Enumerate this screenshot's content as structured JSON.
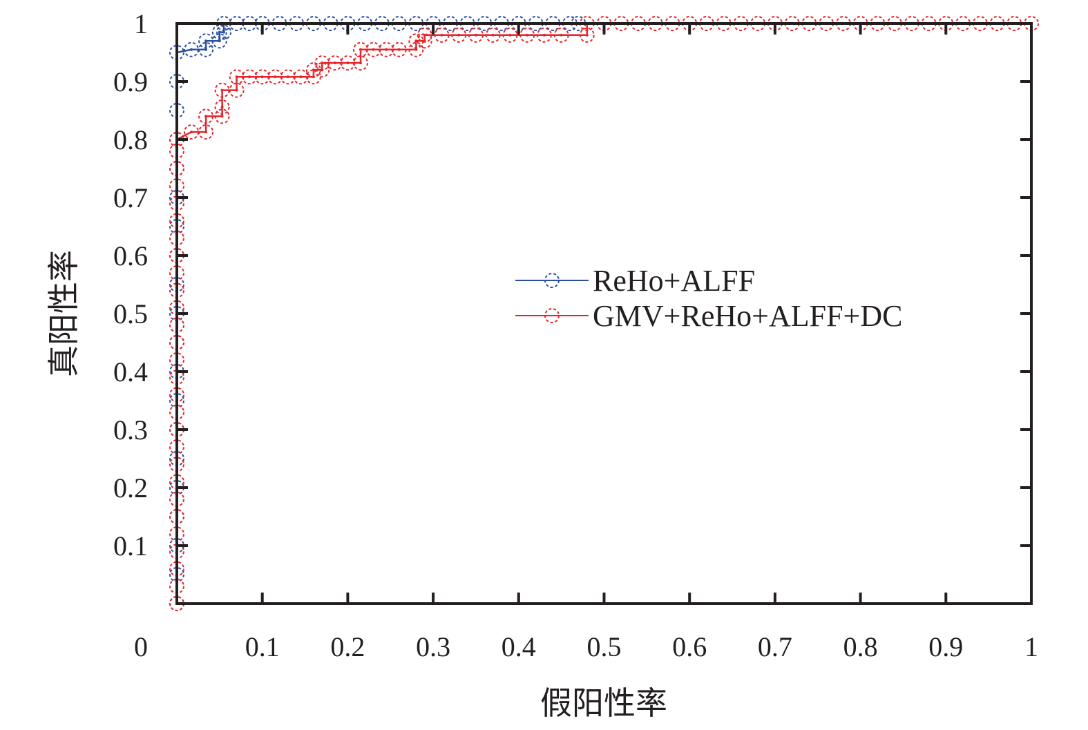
{
  "chart_data": {
    "type": "line",
    "title": "",
    "xlabel": "假阳性率",
    "ylabel": "真阳性率",
    "xlim": [
      0,
      1
    ],
    "ylim": [
      0,
      1
    ],
    "x_ticks": [
      "0",
      "0.1",
      "0.2",
      "0.3",
      "0.4",
      "0.5",
      "0.6",
      "0.7",
      "0.8",
      "0.9",
      "1"
    ],
    "y_ticks": [
      "0.1",
      "0.2",
      "0.3",
      "0.4",
      "0.5",
      "0.6",
      "0.7",
      "0.8",
      "0.9",
      "1"
    ],
    "grid": false,
    "legend_position": "center-right",
    "series": [
      {
        "name": "ReHo+ALFF",
        "color": "#2b4ea2",
        "marker": "open-circle",
        "points": [
          [
            0,
            0
          ],
          [
            0,
            0.05
          ],
          [
            0,
            0.1
          ],
          [
            0,
            0.15
          ],
          [
            0,
            0.2
          ],
          [
            0,
            0.25
          ],
          [
            0,
            0.3
          ],
          [
            0,
            0.35
          ],
          [
            0,
            0.4
          ],
          [
            0,
            0.45
          ],
          [
            0,
            0.5
          ],
          [
            0,
            0.55
          ],
          [
            0,
            0.6
          ],
          [
            0,
            0.65
          ],
          [
            0,
            0.7
          ],
          [
            0,
            0.75
          ],
          [
            0,
            0.8
          ],
          [
            0,
            0.85
          ],
          [
            0,
            0.9
          ],
          [
            0,
            0.95
          ],
          [
            0.017,
            0.955
          ],
          [
            0.034,
            0.955
          ],
          [
            0.034,
            0.97
          ],
          [
            0.05,
            0.97
          ],
          [
            0.05,
            0.985
          ],
          [
            0.055,
            0.985
          ],
          [
            0.055,
            1.0
          ],
          [
            0.07,
            1.0
          ],
          [
            0.085,
            1.0
          ],
          [
            0.1,
            1.0
          ],
          [
            0.12,
            1.0
          ],
          [
            0.14,
            1.0
          ],
          [
            0.16,
            1.0
          ],
          [
            0.18,
            1.0
          ],
          [
            0.2,
            1.0
          ],
          [
            0.22,
            1.0
          ],
          [
            0.24,
            1.0
          ],
          [
            0.26,
            1.0
          ],
          [
            0.28,
            1.0
          ],
          [
            0.3,
            1.0
          ],
          [
            0.32,
            1.0
          ],
          [
            0.34,
            1.0
          ],
          [
            0.36,
            1.0
          ],
          [
            0.38,
            1.0
          ],
          [
            0.4,
            1.0
          ],
          [
            0.42,
            1.0
          ],
          [
            0.44,
            1.0
          ],
          [
            0.46,
            1.0
          ],
          [
            0.47,
            1.0
          ]
        ]
      },
      {
        "name": "GMV+ReHo+ALFF+DC",
        "color": "#e4262c",
        "marker": "open-circle",
        "points": [
          [
            0,
            0
          ],
          [
            0,
            0.03
          ],
          [
            0,
            0.06
          ],
          [
            0,
            0.09
          ],
          [
            0,
            0.12
          ],
          [
            0,
            0.15
          ],
          [
            0,
            0.18
          ],
          [
            0,
            0.21
          ],
          [
            0,
            0.24
          ],
          [
            0,
            0.27
          ],
          [
            0,
            0.3
          ],
          [
            0,
            0.33
          ],
          [
            0,
            0.36
          ],
          [
            0,
            0.39
          ],
          [
            0,
            0.42
          ],
          [
            0,
            0.45
          ],
          [
            0,
            0.48
          ],
          [
            0,
            0.51
          ],
          [
            0,
            0.54
          ],
          [
            0,
            0.57
          ],
          [
            0,
            0.6
          ],
          [
            0,
            0.63
          ],
          [
            0,
            0.66
          ],
          [
            0,
            0.69
          ],
          [
            0,
            0.72
          ],
          [
            0,
            0.75
          ],
          [
            0,
            0.78
          ],
          [
            0,
            0.8
          ],
          [
            0.017,
            0.813
          ],
          [
            0.034,
            0.813
          ],
          [
            0.034,
            0.84
          ],
          [
            0.053,
            0.84
          ],
          [
            0.053,
            0.856
          ],
          [
            0.053,
            0.885
          ],
          [
            0.07,
            0.885
          ],
          [
            0.07,
            0.908
          ],
          [
            0.085,
            0.908
          ],
          [
            0.1,
            0.908
          ],
          [
            0.115,
            0.908
          ],
          [
            0.13,
            0.908
          ],
          [
            0.145,
            0.908
          ],
          [
            0.16,
            0.908
          ],
          [
            0.16,
            0.92
          ],
          [
            0.17,
            0.92
          ],
          [
            0.17,
            0.932
          ],
          [
            0.185,
            0.932
          ],
          [
            0.2,
            0.932
          ],
          [
            0.215,
            0.932
          ],
          [
            0.215,
            0.955
          ],
          [
            0.23,
            0.955
          ],
          [
            0.245,
            0.955
          ],
          [
            0.26,
            0.955
          ],
          [
            0.28,
            0.955
          ],
          [
            0.28,
            0.97
          ],
          [
            0.29,
            0.97
          ],
          [
            0.29,
            0.98
          ],
          [
            0.31,
            0.98
          ],
          [
            0.33,
            0.98
          ],
          [
            0.35,
            0.98
          ],
          [
            0.37,
            0.98
          ],
          [
            0.39,
            0.98
          ],
          [
            0.41,
            0.98
          ],
          [
            0.43,
            0.98
          ],
          [
            0.45,
            0.98
          ],
          [
            0.48,
            0.98
          ],
          [
            0.48,
            1.0
          ],
          [
            0.5,
            1.0
          ],
          [
            0.52,
            1.0
          ],
          [
            0.54,
            1.0
          ],
          [
            0.56,
            1.0
          ],
          [
            0.58,
            1.0
          ],
          [
            0.6,
            1.0
          ],
          [
            0.62,
            1.0
          ],
          [
            0.64,
            1.0
          ],
          [
            0.66,
            1.0
          ],
          [
            0.68,
            1.0
          ],
          [
            0.7,
            1.0
          ],
          [
            0.72,
            1.0
          ],
          [
            0.74,
            1.0
          ],
          [
            0.76,
            1.0
          ],
          [
            0.78,
            1.0
          ],
          [
            0.8,
            1.0
          ],
          [
            0.82,
            1.0
          ],
          [
            0.84,
            1.0
          ],
          [
            0.86,
            1.0
          ],
          [
            0.88,
            1.0
          ],
          [
            0.9,
            1.0
          ],
          [
            0.92,
            1.0
          ],
          [
            0.94,
            1.0
          ],
          [
            0.96,
            1.0
          ],
          [
            0.98,
            1.0
          ],
          [
            1.0,
            1.0
          ]
        ]
      }
    ]
  }
}
